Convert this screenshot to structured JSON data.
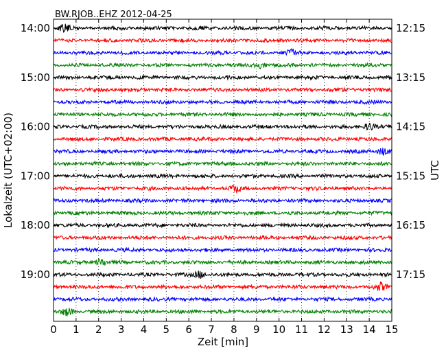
{
  "chart_data": {
    "type": "line",
    "title": "BW.RJOB..EHZ 2012-04-25",
    "xlabel": "Zeit  [min]",
    "ylabel_left": "Lokalzeit (UTC+02:00)",
    "ylabel_right": "UTC",
    "xlim": [
      0,
      15
    ],
    "x_ticks": [
      "0",
      "1",
      "2",
      "3",
      "4",
      "5",
      "6",
      "7",
      "8",
      "9",
      "10",
      "11",
      "12",
      "13",
      "14",
      "15"
    ],
    "left_ticks": [
      "14:00",
      "15:00",
      "16:00",
      "17:00",
      "18:00",
      "19:00"
    ],
    "right_ticks": [
      "12:15",
      "13:15",
      "14:15",
      "15:15",
      "16:15",
      "17:15"
    ],
    "grid": "vertical dotted",
    "trace_colors": [
      "#000000",
      "#ff0000",
      "#0000ff",
      "#008000"
    ],
    "traces_per_hour": 4,
    "trace_count": 24,
    "series_note_events": [
      {
        "trace": 0,
        "minute": 0.5
      },
      {
        "trace": 2,
        "minute": 10.6
      },
      {
        "trace": 3,
        "minute": 9.2
      },
      {
        "trace": 8,
        "minute": 14.0
      },
      {
        "trace": 10,
        "minute": 14.6
      },
      {
        "trace": 13,
        "minute": 8.1
      },
      {
        "trace": 19,
        "minute": 2.1
      },
      {
        "trace": 20,
        "minute": 6.5
      },
      {
        "trace": 21,
        "minute": 14.5
      },
      {
        "trace": 23,
        "minute": 0.6
      }
    ]
  }
}
